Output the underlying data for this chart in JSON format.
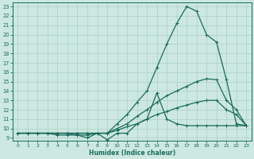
{
  "xlabel": "Humidex (Indice chaleur)",
  "bg_color": "#cce8e0",
  "line_color": "#1a6b5a",
  "grid_color": "#aacfc8",
  "xlim": [
    -0.5,
    23.5
  ],
  "ylim": [
    8.7,
    23.4
  ],
  "xticks": [
    0,
    1,
    2,
    3,
    4,
    5,
    6,
    7,
    8,
    9,
    10,
    11,
    12,
    13,
    14,
    15,
    16,
    17,
    18,
    19,
    20,
    21,
    22,
    23
  ],
  "yticks": [
    9,
    10,
    11,
    12,
    13,
    14,
    15,
    16,
    17,
    18,
    19,
    20,
    21,
    22,
    23
  ],
  "curve_main": {
    "x": [
      0,
      1,
      2,
      3,
      4,
      5,
      6,
      7,
      8,
      9,
      10,
      11,
      12,
      13,
      14,
      15,
      16,
      17,
      18,
      19,
      20,
      21,
      22,
      23
    ],
    "y": [
      9.5,
      9.5,
      9.5,
      9.5,
      9.5,
      9.5,
      9.5,
      9.5,
      9.5,
      9.5,
      10.5,
      11.5,
      12.8,
      14.0,
      16.5,
      19.0,
      21.2,
      23.0,
      22.5,
      20.0,
      19.2,
      15.2,
      10.5,
      10.3
    ]
  },
  "curve_mid": {
    "x": [
      0,
      1,
      2,
      3,
      4,
      5,
      6,
      7,
      8,
      9,
      10,
      11,
      12,
      13,
      14,
      15,
      16,
      17,
      18,
      19,
      20,
      21,
      22,
      23
    ],
    "y": [
      9.5,
      9.5,
      9.5,
      9.5,
      9.5,
      9.5,
      9.3,
      9.3,
      9.5,
      9.5,
      10.0,
      10.5,
      11.3,
      12.0,
      12.8,
      13.5,
      14.0,
      14.5,
      15.0,
      15.3,
      15.2,
      13.0,
      12.0,
      10.3
    ]
  },
  "curve_low": {
    "x": [
      0,
      1,
      2,
      3,
      4,
      5,
      6,
      7,
      8,
      9,
      10,
      11,
      12,
      13,
      14,
      15,
      16,
      17,
      18,
      19,
      20,
      21,
      22,
      23
    ],
    "y": [
      9.5,
      9.5,
      9.5,
      9.5,
      9.5,
      9.5,
      9.5,
      9.5,
      9.5,
      9.5,
      9.8,
      10.2,
      10.5,
      11.0,
      11.5,
      11.8,
      12.2,
      12.5,
      12.8,
      13.0,
      13.0,
      12.0,
      11.5,
      10.3
    ]
  },
  "curve_spike": {
    "x": [
      0,
      1,
      2,
      3,
      4,
      5,
      6,
      7,
      8,
      9,
      10,
      11,
      12,
      13,
      14,
      15,
      16,
      17,
      18,
      19,
      20,
      21,
      22,
      23
    ],
    "y": [
      9.5,
      9.5,
      9.5,
      9.5,
      9.3,
      9.3,
      9.3,
      9.0,
      9.5,
      8.8,
      9.5,
      9.5,
      10.5,
      11.0,
      13.8,
      11.0,
      10.5,
      10.3,
      10.3,
      10.3,
      10.3,
      10.3,
      10.3,
      10.3
    ]
  }
}
